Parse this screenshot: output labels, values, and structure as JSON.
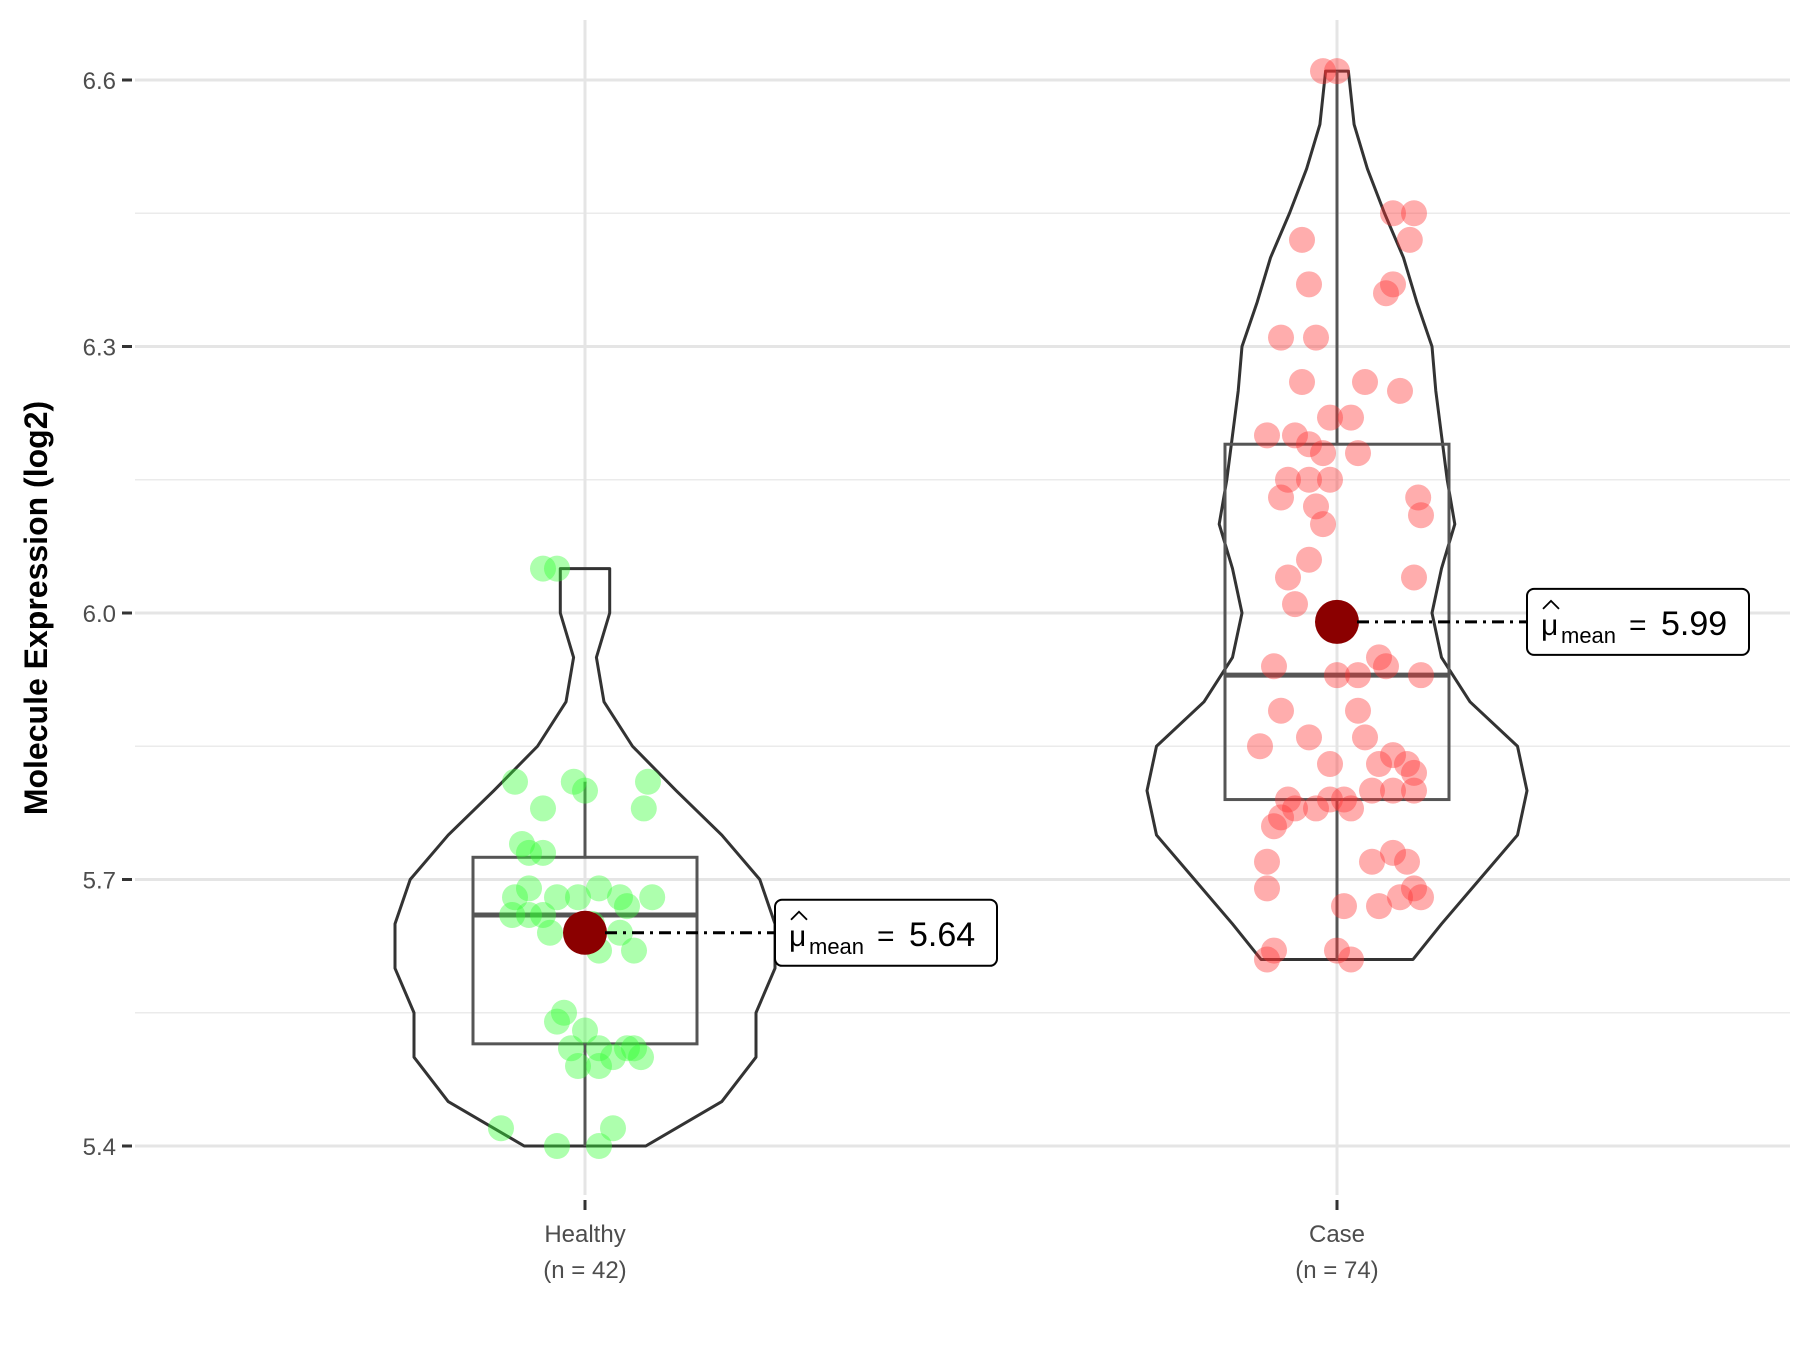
{
  "chart_data": {
    "type": "violin",
    "ylabel": "Molecule Expression (log2)",
    "xlabel": "",
    "ylim": [
      5.35,
      6.66
    ],
    "y_ticks": [
      5.4,
      5.7,
      6.0,
      6.3,
      6.6
    ],
    "y_tick_labels": [
      "5.4",
      "5.7",
      "6.0",
      "6.3",
      "6.6"
    ],
    "grid": true,
    "groups": [
      {
        "category": "Healthy",
        "n_label": "(n = 42)",
        "color": "#33ff33",
        "box": {
          "min": 5.4,
          "q1": 5.515,
          "median": 5.66,
          "q3": 5.725,
          "max": 5.81
        },
        "violin_range": [
          5.4,
          6.05
        ],
        "violin_profile": [
          [
            5.4,
            0.32
          ],
          [
            5.45,
            0.72
          ],
          [
            5.5,
            0.9
          ],
          [
            5.55,
            0.9
          ],
          [
            5.6,
            1.0
          ],
          [
            5.65,
            1.0
          ],
          [
            5.7,
            0.92
          ],
          [
            5.75,
            0.72
          ],
          [
            5.8,
            0.48
          ],
          [
            5.85,
            0.25
          ],
          [
            5.9,
            0.1
          ],
          [
            5.95,
            0.06
          ],
          [
            6.0,
            0.13
          ],
          [
            6.05,
            0.13
          ]
        ],
        "mean_value": 5.64,
        "mean_label": "5.64",
        "points": [
          [
            -0.5,
            5.81
          ],
          [
            -0.3,
            5.78
          ],
          [
            -0.45,
            5.74
          ],
          [
            -0.4,
            5.73
          ],
          [
            -0.3,
            5.73
          ],
          [
            -0.4,
            5.69
          ],
          [
            -0.5,
            5.68
          ],
          [
            -0.3,
            5.66
          ],
          [
            -0.2,
            5.68
          ],
          [
            -0.05,
            5.68
          ],
          [
            0.1,
            5.69
          ],
          [
            0.25,
            5.68
          ],
          [
            0.48,
            5.68
          ],
          [
            -0.4,
            5.66
          ],
          [
            -0.25,
            5.64
          ],
          [
            0.05,
            5.65
          ],
          [
            0.25,
            5.64
          ],
          [
            0.1,
            5.62
          ],
          [
            0.35,
            5.62
          ],
          [
            0.0,
            5.8
          ],
          [
            -0.08,
            5.81
          ],
          [
            0.45,
            5.81
          ],
          [
            0.42,
            5.78
          ],
          [
            -0.15,
            5.55
          ],
          [
            -0.2,
            5.54
          ],
          [
            0.0,
            5.53
          ],
          [
            0.1,
            5.51
          ],
          [
            0.3,
            5.51
          ],
          [
            0.35,
            5.51
          ],
          [
            0.2,
            5.5
          ],
          [
            -0.05,
            5.49
          ],
          [
            0.1,
            5.49
          ],
          [
            -0.6,
            5.42
          ],
          [
            0.2,
            5.42
          ],
          [
            -0.2,
            5.4
          ],
          [
            0.1,
            5.4
          ],
          [
            -0.3,
            6.05
          ],
          [
            -0.2,
            6.05
          ],
          [
            0.4,
            5.5
          ],
          [
            -0.1,
            5.51
          ],
          [
            0.3,
            5.67
          ],
          [
            -0.52,
            5.66
          ]
        ]
      },
      {
        "category": "Case",
        "n_label": "(n = 74)",
        "color": "#ff3333",
        "box": {
          "min": 5.61,
          "q1": 5.79,
          "median": 5.93,
          "q3": 6.19,
          "max": 6.61
        },
        "violin_range": [
          5.61,
          6.61
        ],
        "violin_profile": [
          [
            5.61,
            0.4
          ],
          [
            5.65,
            0.55
          ],
          [
            5.7,
            0.75
          ],
          [
            5.75,
            0.95
          ],
          [
            5.8,
            1.0
          ],
          [
            5.85,
            0.95
          ],
          [
            5.9,
            0.7
          ],
          [
            5.95,
            0.55
          ],
          [
            6.0,
            0.5
          ],
          [
            6.05,
            0.55
          ],
          [
            6.1,
            0.62
          ],
          [
            6.15,
            0.58
          ],
          [
            6.2,
            0.55
          ],
          [
            6.25,
            0.52
          ],
          [
            6.3,
            0.5
          ],
          [
            6.35,
            0.42
          ],
          [
            6.4,
            0.35
          ],
          [
            6.45,
            0.25
          ],
          [
            6.5,
            0.16
          ],
          [
            6.55,
            0.09
          ],
          [
            6.61,
            0.06
          ]
        ],
        "mean_value": 5.99,
        "mean_label": "5.99",
        "points": [
          [
            -0.1,
            6.61
          ],
          [
            0.0,
            6.61
          ],
          [
            0.4,
            6.45
          ],
          [
            0.55,
            6.45
          ],
          [
            0.52,
            6.42
          ],
          [
            -0.25,
            6.42
          ],
          [
            -0.2,
            6.37
          ],
          [
            0.4,
            6.37
          ],
          [
            0.35,
            6.36
          ],
          [
            -0.4,
            6.31
          ],
          [
            -0.15,
            6.31
          ],
          [
            -0.25,
            6.26
          ],
          [
            0.2,
            6.26
          ],
          [
            -0.05,
            6.22
          ],
          [
            0.1,
            6.22
          ],
          [
            -0.5,
            6.2
          ],
          [
            -0.3,
            6.2
          ],
          [
            -0.2,
            6.19
          ],
          [
            -0.1,
            6.18
          ],
          [
            0.15,
            6.18
          ],
          [
            -0.2,
            6.15
          ],
          [
            -0.05,
            6.15
          ],
          [
            -0.4,
            6.13
          ],
          [
            0.58,
            6.13
          ],
          [
            -0.15,
            6.12
          ],
          [
            0.6,
            6.11
          ],
          [
            -0.1,
            6.1
          ],
          [
            -0.2,
            6.06
          ],
          [
            0.55,
            6.04
          ],
          [
            -0.35,
            6.04
          ],
          [
            -0.45,
            5.94
          ],
          [
            0.35,
            5.94
          ],
          [
            0.6,
            5.93
          ],
          [
            0.0,
            5.93
          ],
          [
            0.15,
            5.93
          ],
          [
            -0.4,
            5.89
          ],
          [
            0.15,
            5.89
          ],
          [
            -0.05,
            5.83
          ],
          [
            0.4,
            5.84
          ],
          [
            0.5,
            5.83
          ],
          [
            0.3,
            5.83
          ],
          [
            0.55,
            5.82
          ],
          [
            0.55,
            5.8
          ],
          [
            0.4,
            5.8
          ],
          [
            0.25,
            5.8
          ],
          [
            -0.35,
            5.79
          ],
          [
            -0.3,
            5.78
          ],
          [
            -0.15,
            5.78
          ],
          [
            -0.05,
            5.79
          ],
          [
            0.05,
            5.79
          ],
          [
            0.1,
            5.78
          ],
          [
            -0.4,
            5.77
          ],
          [
            -0.45,
            5.76
          ],
          [
            0.4,
            5.73
          ],
          [
            0.5,
            5.72
          ],
          [
            0.25,
            5.72
          ],
          [
            -0.5,
            5.72
          ],
          [
            0.55,
            5.69
          ],
          [
            -0.5,
            5.69
          ],
          [
            0.6,
            5.68
          ],
          [
            0.45,
            5.68
          ],
          [
            0.3,
            5.67
          ],
          [
            0.05,
            5.67
          ],
          [
            -0.45,
            5.62
          ],
          [
            0.0,
            5.62
          ],
          [
            -0.5,
            5.61
          ],
          [
            0.1,
            5.61
          ],
          [
            -0.2,
            5.86
          ],
          [
            0.2,
            5.86
          ],
          [
            -0.3,
            6.01
          ],
          [
            0.3,
            5.95
          ],
          [
            -0.55,
            5.85
          ],
          [
            0.45,
            6.25
          ],
          [
            -0.35,
            6.15
          ]
        ]
      }
    ]
  }
}
